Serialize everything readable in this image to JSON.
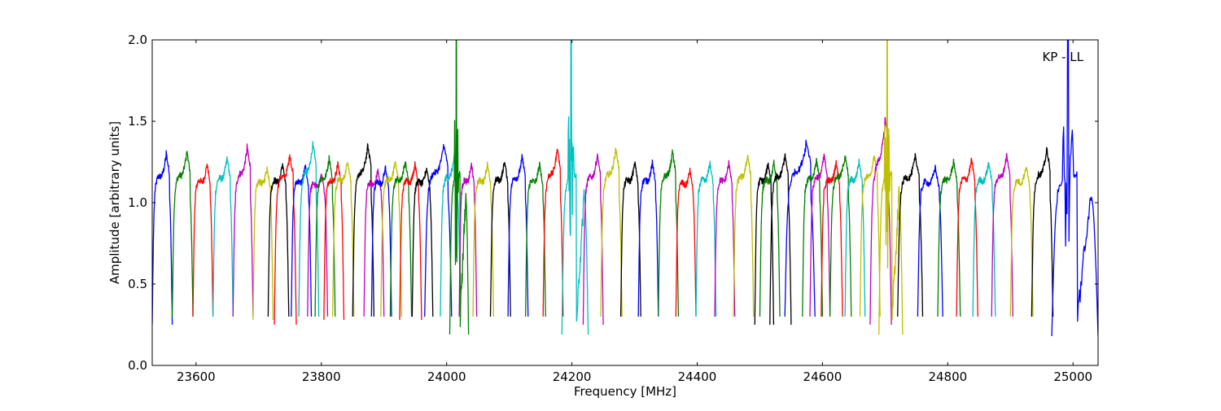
{
  "chart_data": {
    "type": "line",
    "annotation": "KP - LL",
    "xlabel": "Frequency [MHz]",
    "ylabel": "Amplitude [arbitrary units]",
    "xlim": [
      23530,
      25040
    ],
    "ylim": [
      0.0,
      2.0
    ],
    "x_ticks": [
      23600,
      23800,
      24000,
      24200,
      24400,
      24600,
      24800,
      25000
    ],
    "y_ticks": [
      0.0,
      0.5,
      1.0,
      1.5,
      2.0
    ],
    "y_tick_labels": [
      "0.0",
      "0.5",
      "1.0",
      "1.5",
      "2.0"
    ],
    "grid": false,
    "legend": "none",
    "colors": [
      "#0000ff",
      "#008000",
      "#ff0000",
      "#00bfbf",
      "#bf00bf",
      "#bfbf00",
      "#000000"
    ],
    "series": [
      {
        "color": "#0000ff",
        "x_start": 23530,
        "x_end": 23562,
        "min_y": 0.25,
        "peak_y": 1.31
      },
      {
        "color": "#008000",
        "x_start": 23562,
        "x_end": 23595,
        "min_y": 0.3,
        "peak_y": 1.32
      },
      {
        "color": "#ff0000",
        "x_start": 23595,
        "x_end": 23627,
        "min_y": 0.3,
        "peak_y": 1.24
      },
      {
        "color": "#00bfbf",
        "x_start": 23627,
        "x_end": 23659,
        "min_y": 0.3,
        "peak_y": 1.28
      },
      {
        "color": "#bf00bf",
        "x_start": 23659,
        "x_end": 23691,
        "min_y": 0.3,
        "peak_y": 1.35
      },
      {
        "color": "#bfbf00",
        "x_start": 23691,
        "x_end": 23723,
        "min_y": 0.28,
        "peak_y": 1.22
      },
      {
        "color": "#000000",
        "x_start": 23715,
        "x_end": 23748,
        "min_y": 0.3,
        "peak_y": 1.24
      },
      {
        "color": "#ff0000",
        "x_start": 23725,
        "x_end": 23760,
        "min_y": 0.25,
        "peak_y": 1.3
      },
      {
        "color": "#0000ff",
        "x_start": 23752,
        "x_end": 23784,
        "min_y": 0.3,
        "peak_y": 1.23
      },
      {
        "color": "#00bfbf",
        "x_start": 23764,
        "x_end": 23796,
        "min_y": 0.3,
        "peak_y": 1.37
      },
      {
        "color": "#bf00bf",
        "x_start": 23778,
        "x_end": 23810,
        "min_y": 0.3,
        "peak_y": 1.18
      },
      {
        "color": "#008000",
        "x_start": 23790,
        "x_end": 23822,
        "min_y": 0.3,
        "peak_y": 1.28
      },
      {
        "color": "#ff0000",
        "x_start": 23804,
        "x_end": 23836,
        "min_y": 0.28,
        "peak_y": 1.25
      },
      {
        "color": "#bfbf00",
        "x_start": 23818,
        "x_end": 23852,
        "min_y": 0.3,
        "peak_y": 1.26
      },
      {
        "color": "#000000",
        "x_start": 23850,
        "x_end": 23884,
        "min_y": 0.3,
        "peak_y": 1.36
      },
      {
        "color": "#bf00bf",
        "x_start": 23868,
        "x_end": 23900,
        "min_y": 0.3,
        "peak_y": 1.2
      },
      {
        "color": "#0000ff",
        "x_start": 23880,
        "x_end": 23912,
        "min_y": 0.3,
        "peak_y": 1.22
      },
      {
        "color": "#bfbf00",
        "x_start": 23895,
        "x_end": 23928,
        "min_y": 0.3,
        "peak_y": 1.26
      },
      {
        "color": "#008000",
        "x_start": 23910,
        "x_end": 23944,
        "min_y": 0.3,
        "peak_y": 1.26
      },
      {
        "color": "#ff0000",
        "x_start": 23925,
        "x_end": 23960,
        "min_y": 0.28,
        "peak_y": 1.24
      },
      {
        "color": "#000000",
        "x_start": 23945,
        "x_end": 23978,
        "min_y": 0.3,
        "peak_y": 1.22
      },
      {
        "color": "#0000ff",
        "x_start": 23965,
        "x_end": 24008,
        "min_y": 0.3,
        "peak_y": 1.36
      },
      {
        "color": "#00bfbf",
        "x_start": 23990,
        "x_end": 24022,
        "min_y": 0.3,
        "peak_y": 1.3
      },
      {
        "color": "#008000",
        "x_start": 24005,
        "x_end": 24035,
        "min_y": 0.19,
        "peak_y": 2.0
      },
      {
        "color": "#bf00bf",
        "x_start": 24020,
        "x_end": 24048,
        "min_y": 0.3,
        "peak_y": 1.24
      },
      {
        "color": "#bfbf00",
        "x_start": 24042,
        "x_end": 24075,
        "min_y": 0.3,
        "peak_y": 1.24
      },
      {
        "color": "#000000",
        "x_start": 24070,
        "x_end": 24102,
        "min_y": 0.3,
        "peak_y": 1.26
      },
      {
        "color": "#0000ff",
        "x_start": 24098,
        "x_end": 24130,
        "min_y": 0.3,
        "peak_y": 1.29
      },
      {
        "color": "#008000",
        "x_start": 24126,
        "x_end": 24158,
        "min_y": 0.3,
        "peak_y": 1.24
      },
      {
        "color": "#ff0000",
        "x_start": 24154,
        "x_end": 24186,
        "min_y": 0.3,
        "peak_y": 1.34
      },
      {
        "color": "#00bfbf",
        "x_start": 24184,
        "x_end": 24226,
        "min_y": 0.19,
        "peak_y": 2.0
      },
      {
        "color": "#bf00bf",
        "x_start": 24218,
        "x_end": 24250,
        "min_y": 0.25,
        "peak_y": 1.3
      },
      {
        "color": "#bfbf00",
        "x_start": 24246,
        "x_end": 24280,
        "min_y": 0.3,
        "peak_y": 1.34
      },
      {
        "color": "#000000",
        "x_start": 24278,
        "x_end": 24310,
        "min_y": 0.3,
        "peak_y": 1.25
      },
      {
        "color": "#0000ff",
        "x_start": 24306,
        "x_end": 24338,
        "min_y": 0.3,
        "peak_y": 1.25
      },
      {
        "color": "#008000",
        "x_start": 24338,
        "x_end": 24370,
        "min_y": 0.3,
        "peak_y": 1.32
      },
      {
        "color": "#ff0000",
        "x_start": 24366,
        "x_end": 24398,
        "min_y": 0.3,
        "peak_y": 1.2
      },
      {
        "color": "#00bfbf",
        "x_start": 24398,
        "x_end": 24430,
        "min_y": 0.3,
        "peak_y": 1.25
      },
      {
        "color": "#bf00bf",
        "x_start": 24428,
        "x_end": 24460,
        "min_y": 0.3,
        "peak_y": 1.25
      },
      {
        "color": "#bfbf00",
        "x_start": 24458,
        "x_end": 24490,
        "min_y": 0.3,
        "peak_y": 1.3
      },
      {
        "color": "#000000",
        "x_start": 24492,
        "x_end": 24522,
        "min_y": 0.25,
        "peak_y": 1.25
      },
      {
        "color": "#008000",
        "x_start": 24500,
        "x_end": 24532,
        "min_y": 0.3,
        "peak_y": 1.25
      },
      {
        "color": "#000000",
        "x_start": 24516,
        "x_end": 24550,
        "min_y": 0.25,
        "peak_y": 1.3
      },
      {
        "color": "#0000ff",
        "x_start": 24540,
        "x_end": 24588,
        "min_y": 0.3,
        "peak_y": 1.38
      },
      {
        "color": "#008000",
        "x_start": 24568,
        "x_end": 24600,
        "min_y": 0.3,
        "peak_y": 1.27
      },
      {
        "color": "#bf00bf",
        "x_start": 24580,
        "x_end": 24612,
        "min_y": 0.3,
        "peak_y": 1.3
      },
      {
        "color": "#ff0000",
        "x_start": 24598,
        "x_end": 24632,
        "min_y": 0.3,
        "peak_y": 1.25
      },
      {
        "color": "#008000",
        "x_start": 24612,
        "x_end": 24646,
        "min_y": 0.3,
        "peak_y": 1.3
      },
      {
        "color": "#00bfbf",
        "x_start": 24636,
        "x_end": 24668,
        "min_y": 0.3,
        "peak_y": 1.26
      },
      {
        "color": "#bfbf00",
        "x_start": 24660,
        "x_end": 24692,
        "min_y": 0.3,
        "peak_y": 1.3
      },
      {
        "color": "#bf00bf",
        "x_start": 24676,
        "x_end": 24710,
        "min_y": 0.25,
        "peak_y": 1.52
      },
      {
        "color": "#bfbf00",
        "x_start": 24690,
        "x_end": 24728,
        "min_y": 0.19,
        "peak_y": 2.0
      },
      {
        "color": "#000000",
        "x_start": 24720,
        "x_end": 24760,
        "min_y": 0.3,
        "peak_y": 1.29
      },
      {
        "color": "#0000ff",
        "x_start": 24752,
        "x_end": 24792,
        "min_y": 0.3,
        "peak_y": 1.22
      },
      {
        "color": "#008000",
        "x_start": 24784,
        "x_end": 24820,
        "min_y": 0.3,
        "peak_y": 1.26
      },
      {
        "color": "#ff0000",
        "x_start": 24814,
        "x_end": 24848,
        "min_y": 0.3,
        "peak_y": 1.27
      },
      {
        "color": "#00bfbf",
        "x_start": 24840,
        "x_end": 24876,
        "min_y": 0.3,
        "peak_y": 1.25
      },
      {
        "color": "#bf00bf",
        "x_start": 24870,
        "x_end": 24904,
        "min_y": 0.3,
        "peak_y": 1.3
      },
      {
        "color": "#bfbf00",
        "x_start": 24900,
        "x_end": 24936,
        "min_y": 0.3,
        "peak_y": 1.23
      },
      {
        "color": "#000000",
        "x_start": 24934,
        "x_end": 24968,
        "min_y": 0.3,
        "peak_y": 1.34
      },
      {
        "color": "#0000ff",
        "x_start": 24966,
        "x_end": 25040,
        "min_y": 0.18,
        "peak_y": 2.0
      }
    ]
  }
}
